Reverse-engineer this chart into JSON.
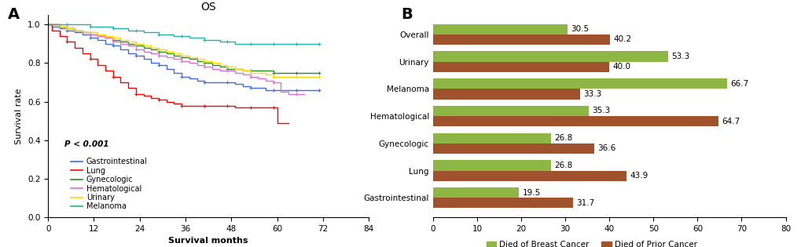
{
  "panel_A": {
    "title": "OS",
    "xlabel": "Survival months",
    "ylabel": "Survival rate",
    "pvalue": "P < 0.001",
    "xticks": [
      0,
      12,
      24,
      36,
      48,
      60,
      72,
      84
    ],
    "yticks": [
      0.0,
      0.2,
      0.4,
      0.6,
      0.8,
      1.0
    ],
    "xlim": [
      0,
      84
    ],
    "ylim": [
      0.0,
      1.05
    ],
    "curves": {
      "Gastrointestinal": {
        "color": "#4169E1",
        "x": [
          0,
          1,
          3,
          5,
          7,
          9,
          11,
          13,
          15,
          17,
          19,
          21,
          23,
          25,
          27,
          29,
          31,
          33,
          35,
          37,
          39,
          41,
          43,
          45,
          47,
          49,
          51,
          53,
          55,
          57,
          59,
          61,
          63,
          65,
          67,
          69,
          71
        ],
        "y": [
          1.0,
          0.99,
          0.98,
          0.97,
          0.96,
          0.95,
          0.93,
          0.92,
          0.9,
          0.89,
          0.87,
          0.85,
          0.84,
          0.82,
          0.8,
          0.79,
          0.77,
          0.75,
          0.73,
          0.72,
          0.71,
          0.7,
          0.7,
          0.7,
          0.7,
          0.69,
          0.68,
          0.67,
          0.67,
          0.66,
          0.66,
          0.66,
          0.66,
          0.66,
          0.66,
          0.66,
          0.66
        ]
      },
      "Lung": {
        "color": "#FF0000",
        "x": [
          0,
          1,
          3,
          5,
          7,
          9,
          11,
          13,
          15,
          17,
          19,
          21,
          23,
          25,
          27,
          29,
          31,
          33,
          35,
          37,
          39,
          41,
          43,
          45,
          47,
          49,
          51,
          53,
          55,
          57,
          59,
          60,
          63
        ],
        "y": [
          1.0,
          0.97,
          0.94,
          0.91,
          0.88,
          0.85,
          0.82,
          0.79,
          0.76,
          0.73,
          0.7,
          0.67,
          0.64,
          0.63,
          0.62,
          0.61,
          0.6,
          0.59,
          0.58,
          0.58,
          0.58,
          0.58,
          0.58,
          0.58,
          0.58,
          0.57,
          0.57,
          0.57,
          0.57,
          0.57,
          0.57,
          0.49,
          0.49
        ]
      },
      "Gynecologic": {
        "color": "#228B22",
        "x": [
          0,
          1,
          3,
          5,
          7,
          9,
          11,
          13,
          15,
          17,
          19,
          21,
          23,
          25,
          27,
          29,
          31,
          33,
          35,
          37,
          39,
          41,
          43,
          45,
          47,
          49,
          51,
          53,
          55,
          57,
          59,
          61,
          63,
          65,
          67,
          69,
          71
        ],
        "y": [
          1.0,
          1.0,
          0.99,
          0.98,
          0.97,
          0.96,
          0.95,
          0.94,
          0.93,
          0.92,
          0.91,
          0.9,
          0.89,
          0.88,
          0.87,
          0.86,
          0.85,
          0.84,
          0.83,
          0.82,
          0.81,
          0.8,
          0.79,
          0.78,
          0.77,
          0.77,
          0.76,
          0.76,
          0.76,
          0.76,
          0.75,
          0.75,
          0.75,
          0.75,
          0.75,
          0.75,
          0.75
        ]
      },
      "Hematological": {
        "color": "#DA70D6",
        "x": [
          0,
          1,
          3,
          5,
          7,
          9,
          11,
          13,
          15,
          17,
          19,
          21,
          23,
          25,
          27,
          29,
          31,
          33,
          35,
          37,
          39,
          41,
          43,
          45,
          47,
          49,
          51,
          53,
          55,
          57,
          59,
          61,
          63,
          65,
          67
        ],
        "y": [
          1.0,
          1.0,
          0.99,
          0.98,
          0.97,
          0.96,
          0.95,
          0.94,
          0.93,
          0.91,
          0.9,
          0.89,
          0.87,
          0.86,
          0.85,
          0.84,
          0.83,
          0.82,
          0.81,
          0.8,
          0.79,
          0.78,
          0.77,
          0.76,
          0.76,
          0.75,
          0.74,
          0.73,
          0.72,
          0.71,
          0.7,
          0.65,
          0.64,
          0.64,
          0.64
        ]
      },
      "Urinary": {
        "color": "#FFD700",
        "x": [
          0,
          1,
          3,
          5,
          7,
          9,
          11,
          13,
          15,
          17,
          19,
          21,
          23,
          25,
          27,
          29,
          31,
          33,
          35,
          37,
          39,
          41,
          43,
          45,
          47,
          49,
          51,
          53,
          55,
          57,
          59,
          61,
          63,
          65,
          67,
          69,
          71
        ],
        "y": [
          1.0,
          1.0,
          0.99,
          0.98,
          0.97,
          0.96,
          0.96,
          0.95,
          0.94,
          0.93,
          0.92,
          0.91,
          0.9,
          0.89,
          0.88,
          0.87,
          0.86,
          0.85,
          0.84,
          0.83,
          0.82,
          0.81,
          0.8,
          0.79,
          0.78,
          0.77,
          0.76,
          0.75,
          0.75,
          0.74,
          0.73,
          0.73,
          0.73,
          0.73,
          0.73,
          0.73,
          0.73
        ]
      },
      "Melanoma": {
        "color": "#20B2AA",
        "x": [
          0,
          1,
          3,
          5,
          7,
          9,
          11,
          13,
          15,
          17,
          19,
          21,
          23,
          25,
          27,
          29,
          31,
          33,
          35,
          37,
          39,
          41,
          43,
          45,
          47,
          49,
          51,
          53,
          55,
          57,
          59,
          61,
          63,
          65,
          67,
          69,
          71
        ],
        "y": [
          1.0,
          1.0,
          1.0,
          1.0,
          1.0,
          1.0,
          0.99,
          0.99,
          0.99,
          0.98,
          0.98,
          0.97,
          0.97,
          0.96,
          0.96,
          0.95,
          0.95,
          0.94,
          0.94,
          0.93,
          0.93,
          0.92,
          0.92,
          0.91,
          0.91,
          0.9,
          0.9,
          0.9,
          0.9,
          0.9,
          0.9,
          0.9,
          0.9,
          0.9,
          0.9,
          0.9,
          0.9
        ]
      }
    },
    "legend_order": [
      "Gastrointestinal",
      "Lung",
      "Gynecologic",
      "Hematological",
      "Urinary",
      "Melanoma"
    ]
  },
  "panel_B": {
    "categories_bottom_to_top": [
      "Gastrointestinal",
      "Lung",
      "Gynecologic",
      "Hematological",
      "Melanoma",
      "Urinary",
      "Overall"
    ],
    "breast_cancer_pct": [
      19.5,
      26.8,
      26.8,
      35.3,
      66.7,
      53.3,
      30.5
    ],
    "prior_cancer_pct": [
      31.7,
      43.9,
      36.6,
      64.7,
      33.3,
      40.0,
      40.2
    ],
    "breast_color": "#8DB645",
    "prior_color": "#A0522D",
    "xlim": [
      0,
      80
    ],
    "xticks": [
      0,
      10,
      20,
      30,
      40,
      50,
      60,
      70,
      80
    ],
    "legend_breast": "Died of Breast Cancer",
    "legend_prior": "Died of Prior Cancer"
  }
}
